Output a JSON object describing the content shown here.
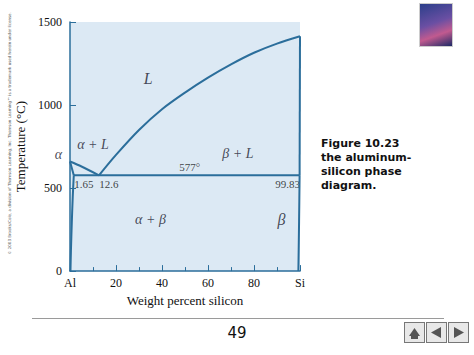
{
  "chart_data": {
    "type": "line",
    "xlabel": "Weight percent silicon",
    "ylabel": "Temperature (°C)",
    "xlim": [
      0,
      100
    ],
    "ylim": [
      0,
      1500
    ],
    "xticks": [
      {
        "value": 0,
        "label": "Al"
      },
      20,
      40,
      60,
      80,
      {
        "value": 100,
        "label": "Si"
      }
    ],
    "yticks": [
      0,
      500,
      1000,
      1500
    ],
    "grid": false,
    "color": "#2b6e9b",
    "boundaries": [
      {
        "x": [
          0,
          5,
          12.6
        ],
        "y": [
          660,
          630,
          577
        ]
      },
      {
        "x": [
          0,
          1.65
        ],
        "y": [
          660,
          577
        ]
      },
      {
        "x": [
          1.65,
          1.2,
          0.8,
          0.4,
          0.2
        ],
        "y": [
          577,
          450,
          300,
          120,
          0
        ]
      },
      {
        "x": [
          12.6,
          20,
          30,
          40,
          50,
          60,
          70,
          80,
          90,
          100
        ],
        "y": [
          577,
          700,
          850,
          975,
          1075,
          1165,
          1245,
          1315,
          1370,
          1414
        ]
      },
      {
        "x": [
          1.65,
          99.83
        ],
        "y": [
          577,
          577
        ]
      },
      {
        "x": [
          99.83,
          100
        ],
        "y": [
          577,
          1414
        ]
      },
      {
        "x": [
          99.83,
          99.6,
          99.3
        ],
        "y": [
          577,
          300,
          0
        ]
      }
    ],
    "eutectic": {
      "temperature": {
        "value": 577,
        "label": "577°"
      },
      "temperature_label_x": 52,
      "compositions": [
        {
          "value": 1.65,
          "label": "1.65"
        },
        {
          "value": 12.6,
          "label": "12.6"
        },
        {
          "value": 99.83,
          "label": "99.83"
        }
      ]
    },
    "phase_labels": [
      {
        "label": "L",
        "x": 34,
        "y": 1160
      },
      {
        "label": "α + L",
        "x": 10,
        "y": 760
      },
      {
        "label": "β + L",
        "x": 73,
        "y": 710
      },
      {
        "label": "α + β",
        "x": 35,
        "y": 310
      },
      {
        "label": "β",
        "x": 92,
        "y": 310
      },
      {
        "label": "α",
        "x": 0,
        "y": 700
      }
    ]
  },
  "caption_lines": [
    "Figure 10.23",
    "the aluminum-",
    "silicon phase",
    "diagram."
  ],
  "slide_number": "49",
  "copyright": "© 2003 Brooks/Cole, a division of Thomson Learning, Inc. Thomson Learning™ is a trademark used herein under license."
}
